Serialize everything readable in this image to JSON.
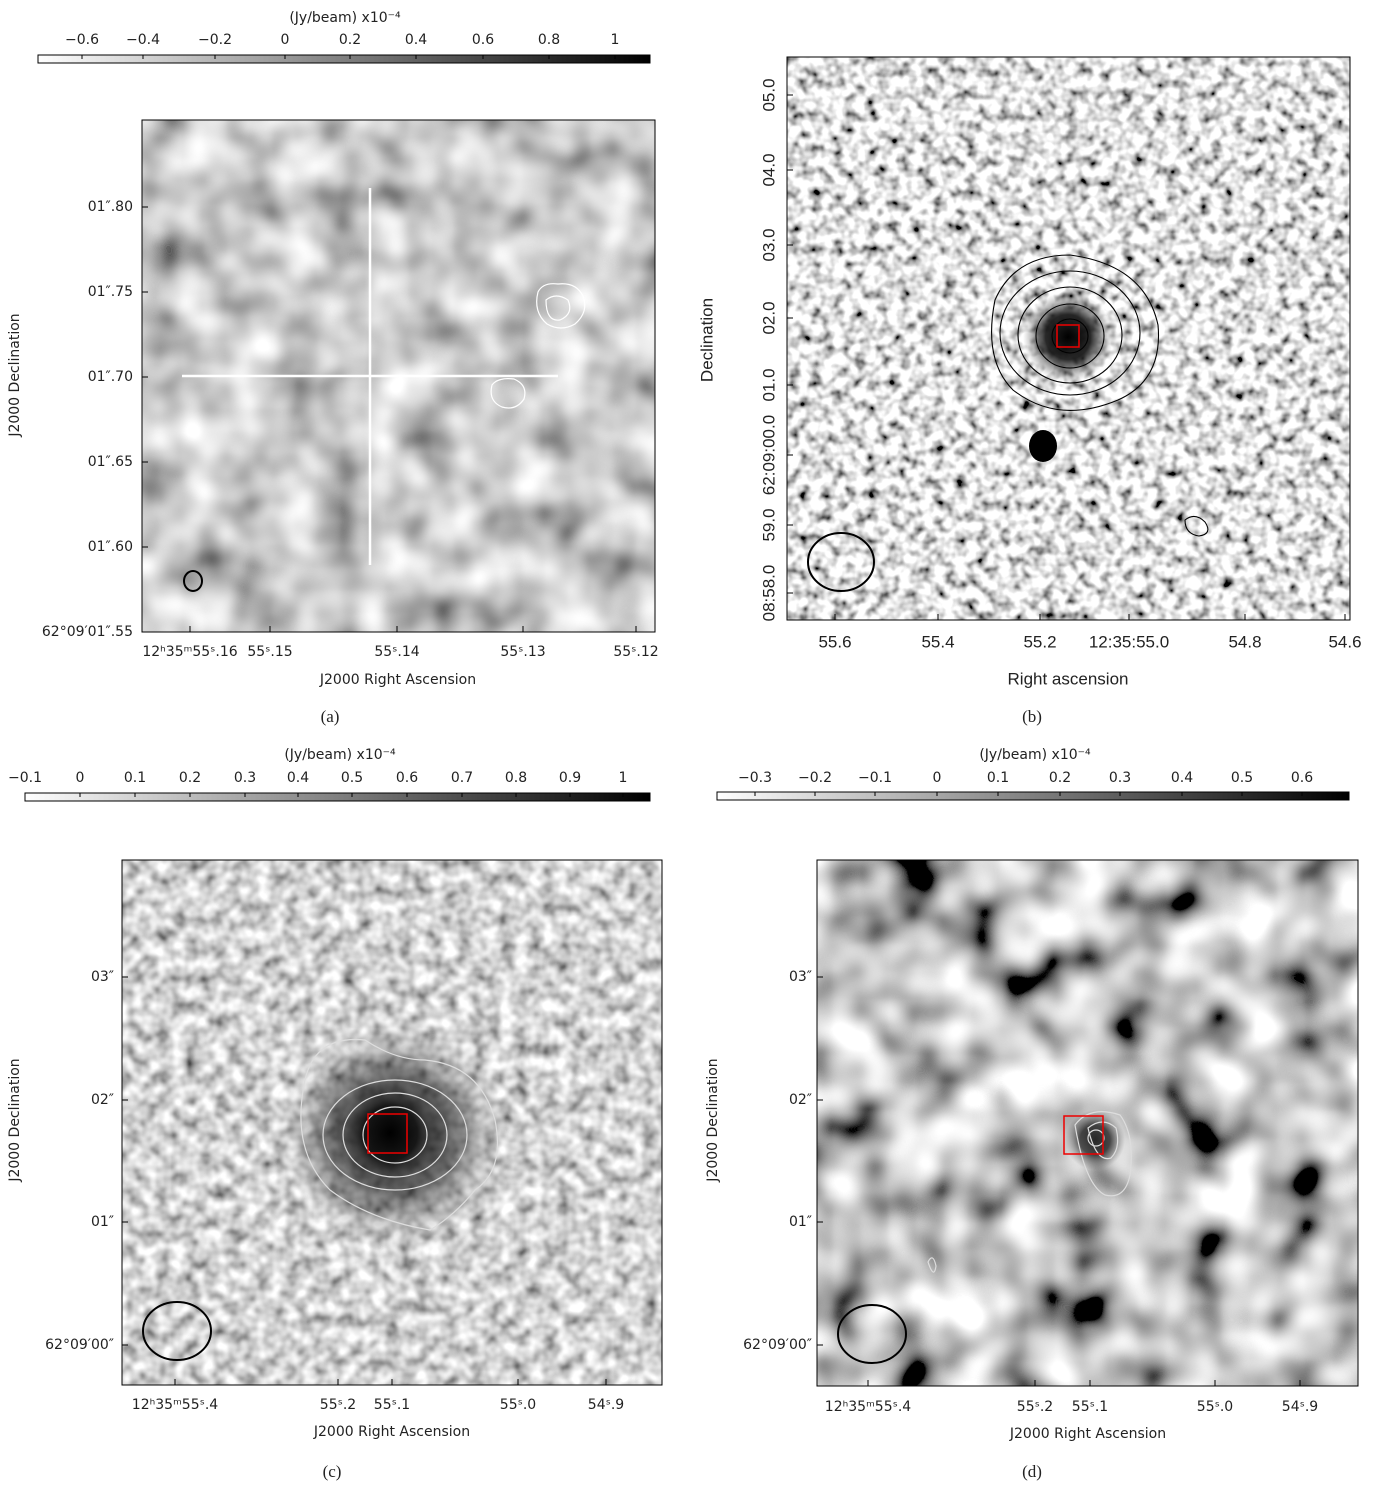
{
  "panels": [
    {
      "caption": "(a)",
      "colorbar": {
        "label": "(Jy/beam)  x10⁻⁴",
        "ticks": [
          "−0.6",
          "−0.4",
          "−0.2",
          "0",
          "0.2",
          "0.4",
          "0.6",
          "0.8",
          "1"
        ]
      },
      "x_ticks": [
        "12ʰ35ᵐ55ˢ.16",
        "55ˢ.15",
        "55ˢ.14",
        "55ˢ.13",
        "55ˢ.12"
      ],
      "y_ticks": [
        "01″.80",
        "01″.75",
        "01″.70",
        "01″.65",
        "01″.60",
        "62°09′01″.55"
      ],
      "x_label": "J2000 Right Ascension",
      "y_label": "J2000 Declination"
    },
    {
      "caption": "(b)",
      "x_ticks": [
        "55.6",
        "55.4",
        "55.2",
        "12:35:55.0",
        "54.8",
        "54.6"
      ],
      "y_ticks": [
        "05.0",
        "04.0",
        "03.0",
        "02.0",
        "01.0",
        "62:09:00.0",
        "59.0",
        "08:58.0"
      ],
      "x_label": "Right ascension",
      "y_label": "Declination"
    },
    {
      "caption": "(c)",
      "colorbar": {
        "label": "(Jy/beam)  x10⁻⁴",
        "ticks": [
          "−0.1",
          "0",
          "0.1",
          "0.2",
          "0.3",
          "0.4",
          "0.5",
          "0.6",
          "0.7",
          "0.8",
          "0.9",
          "1"
        ]
      },
      "x_ticks": [
        "12ʰ35ᵐ55ˢ.4",
        "55ˢ.2",
        "55ˢ.1",
        "55ˢ.0",
        "54ˢ.9"
      ],
      "y_ticks": [
        "03″",
        "02″",
        "01″",
        "62°09′00″"
      ],
      "x_label": "J2000 Right Ascension",
      "y_label": "J2000 Declination"
    },
    {
      "caption": "(d)",
      "colorbar": {
        "label": "(Jy/beam)  x10⁻⁴",
        "ticks": [
          "−0.3",
          "−0.2",
          "−0.1",
          "0",
          "0.1",
          "0.2",
          "0.3",
          "0.4",
          "0.5",
          "0.6"
        ]
      },
      "x_ticks": [
        "12ʰ35ᵐ55ˢ.4",
        "55ˢ.2",
        "55ˢ.1",
        "55ˢ.0",
        "54ˢ.9"
      ],
      "y_ticks": [
        "03″",
        "02″",
        "01″",
        "62°09′00″"
      ],
      "x_label": "J2000 Right Ascension",
      "y_label": "J2000 Declination"
    }
  ]
}
